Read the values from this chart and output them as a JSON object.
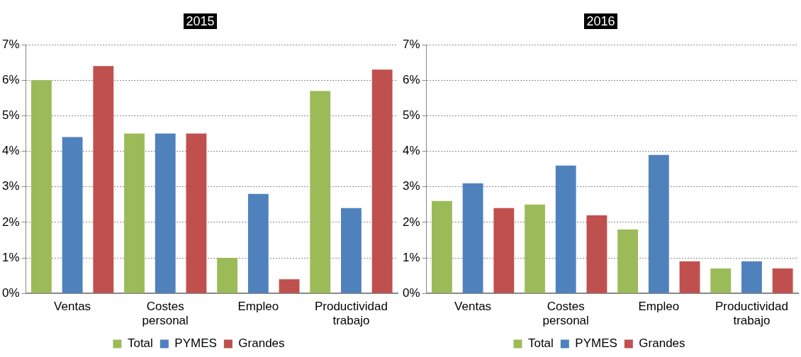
{
  "chart_data": [
    {
      "type": "bar",
      "title": "2015",
      "categories": [
        "Ventas",
        "Costes personal",
        "Empleo",
        "Productividad trabajo"
      ],
      "series": [
        {
          "name": "Total",
          "color": "#9bbb59",
          "values": [
            6.0,
            4.5,
            1.0,
            5.7
          ]
        },
        {
          "name": "PYMES",
          "color": "#4f81bd",
          "values": [
            4.4,
            4.5,
            2.8,
            2.4
          ]
        },
        {
          "name": "Grandes",
          "color": "#c0504d",
          "values": [
            6.4,
            4.5,
            0.4,
            6.3
          ]
        }
      ],
      "ylim": [
        0,
        7
      ],
      "yticks": [
        {
          "value": 0,
          "label": "0%"
        },
        {
          "value": 1,
          "label": "1%"
        },
        {
          "value": 2,
          "label": "2%"
        },
        {
          "value": 3,
          "label": "3%"
        },
        {
          "value": 4,
          "label": "4%"
        },
        {
          "value": 5,
          "label": "5%"
        },
        {
          "value": 6,
          "label": "6%"
        },
        {
          "value": 7,
          "label": "7%"
        }
      ],
      "grid": "y",
      "legend": "bottom"
    },
    {
      "type": "bar",
      "title": "2016",
      "categories": [
        "Ventas",
        "Costes personal",
        "Empleo",
        "Productividad trabajo"
      ],
      "series": [
        {
          "name": "Total",
          "color": "#9bbb59",
          "values": [
            2.6,
            2.5,
            1.8,
            0.7
          ]
        },
        {
          "name": "PYMES",
          "color": "#4f81bd",
          "values": [
            3.1,
            3.6,
            3.9,
            0.9
          ]
        },
        {
          "name": "Grandes",
          "color": "#c0504d",
          "values": [
            2.4,
            2.2,
            0.9,
            0.7
          ]
        }
      ],
      "ylim": [
        0,
        7
      ],
      "yticks": [
        {
          "value": 0,
          "label": "0%"
        },
        {
          "value": 1,
          "label": "1%"
        },
        {
          "value": 2,
          "label": "2%"
        },
        {
          "value": 3,
          "label": "3%"
        },
        {
          "value": 4,
          "label": "4%"
        },
        {
          "value": 5,
          "label": "5%"
        },
        {
          "value": 6,
          "label": "6%"
        },
        {
          "value": 7,
          "label": "7%"
        }
      ],
      "grid": "y",
      "legend": "bottom"
    }
  ]
}
